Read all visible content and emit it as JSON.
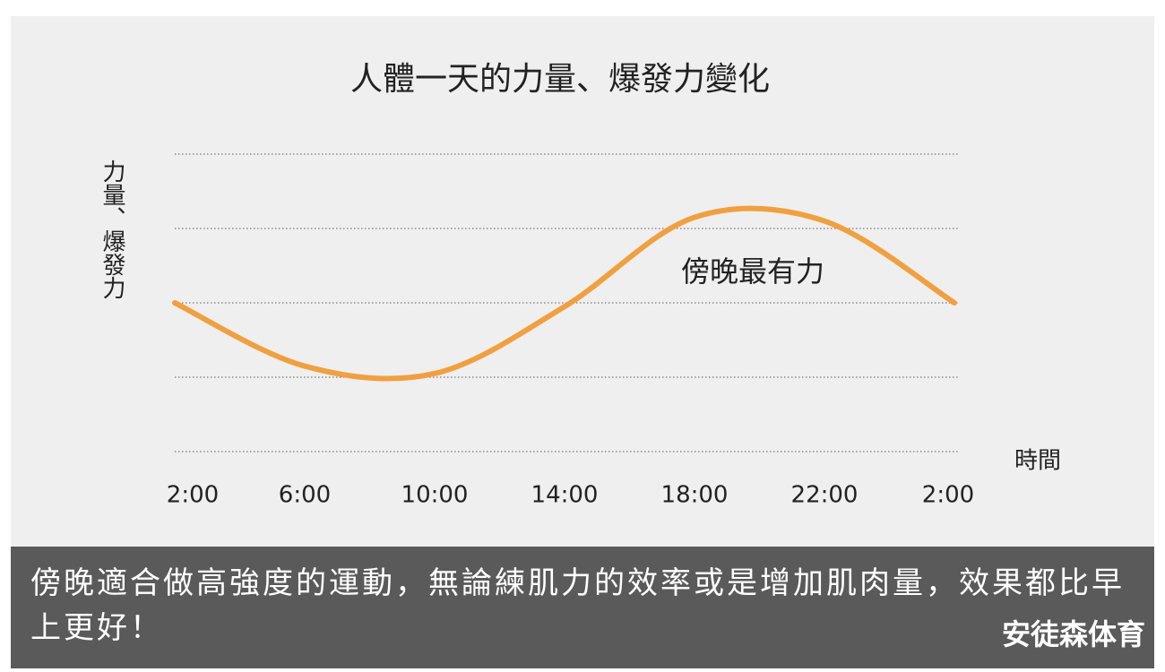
{
  "chart_data": {
    "type": "line",
    "title": "人體一天的力量、爆發力變化",
    "y_label": "力量、爆發力",
    "x_label": "時間",
    "annotation": "傍晚最有力",
    "categories": [
      "2:00",
      "6:00",
      "10:00",
      "14:00",
      "18:00",
      "22:00",
      "2:00"
    ],
    "values": [
      2.0,
      1.15,
      1.05,
      1.95,
      3.15,
      3.1,
      2.0
    ],
    "color": "#f0a040",
    "ylim": [
      0,
      4
    ],
    "yticks": [
      0,
      1,
      2,
      3,
      4
    ],
    "ytick_labels": false,
    "grid": true
  },
  "caption": "傍晚適合做高強度的運動，無論練肌力的效率或是增加肌肉量，效果都比早上更好！",
  "source": "安徒森体育"
}
